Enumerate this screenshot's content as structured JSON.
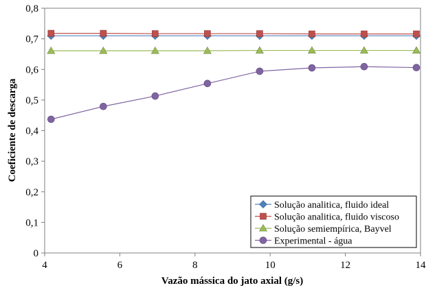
{
  "chart_data": {
    "type": "line",
    "xlabel": "Vazão mássica do jato axial (g/s)",
    "ylabel": "Coeficiente de descarga",
    "xlim": [
      4,
      14
    ],
    "ylim": [
      0,
      0.8
    ],
    "x_ticks": [
      "4",
      "6",
      "8",
      "10",
      "12",
      "14"
    ],
    "y_ticks": [
      "0",
      "0,1",
      "0,2",
      "0,3",
      "0,4",
      "0,5",
      "0,6",
      "0,7",
      "0,8"
    ],
    "grid": false,
    "legend_position": "bottom-right",
    "x": [
      4.17,
      5.56,
      6.94,
      8.33,
      9.72,
      11.11,
      12.5,
      13.89
    ],
    "series": [
      {
        "name": "Solução analitica, fluido ideal",
        "color": "#4f81bd",
        "marker": "diamond",
        "values": [
          0.71,
          0.71,
          0.71,
          0.71,
          0.71,
          0.71,
          0.71,
          0.71
        ]
      },
      {
        "name": "Solução analitica, fluido viscoso",
        "color": "#c0504d",
        "marker": "square",
        "values": [
          0.718,
          0.718,
          0.717,
          0.717,
          0.717,
          0.716,
          0.716,
          0.716
        ]
      },
      {
        "name": "Solução semiempírica, Bayvel",
        "color": "#9bbb59",
        "marker": "triangle",
        "values": [
          0.661,
          0.661,
          0.661,
          0.661,
          0.662,
          0.662,
          0.662,
          0.662
        ]
      },
      {
        "name": "Experimental - água",
        "color": "#8064a2",
        "marker": "circle",
        "values": [
          0.437,
          0.479,
          0.513,
          0.554,
          0.594,
          0.605,
          0.609,
          0.606
        ]
      }
    ]
  }
}
